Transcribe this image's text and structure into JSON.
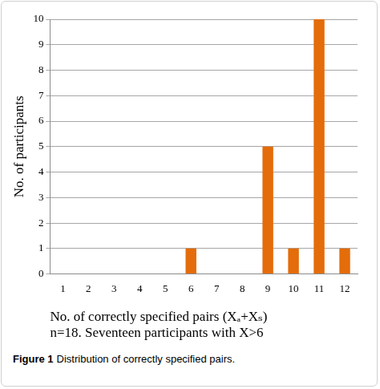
{
  "chart_data": {
    "type": "bar",
    "categories": [
      "1",
      "2",
      "3",
      "4",
      "5",
      "6",
      "7",
      "8",
      "9",
      "10",
      "11",
      "12"
    ],
    "values": [
      0,
      0,
      0,
      0,
      0,
      1,
      0,
      0,
      5,
      1,
      10,
      1
    ],
    "color": "#e46c0a",
    "ylim": [
      0,
      10
    ],
    "yticks": [
      0,
      1,
      2,
      3,
      4,
      5,
      6,
      7,
      8,
      9,
      10
    ],
    "grid": true,
    "y_label": "No. of participants",
    "x_label": "No. of correctly specified pairs (Xₐ+Xₛ)",
    "annotations": [
      "n=18. Seventeen participants with X>6"
    ],
    "caption": {
      "label": "Figure 1",
      "text": "Distribution of correctly specified pairs."
    }
  }
}
